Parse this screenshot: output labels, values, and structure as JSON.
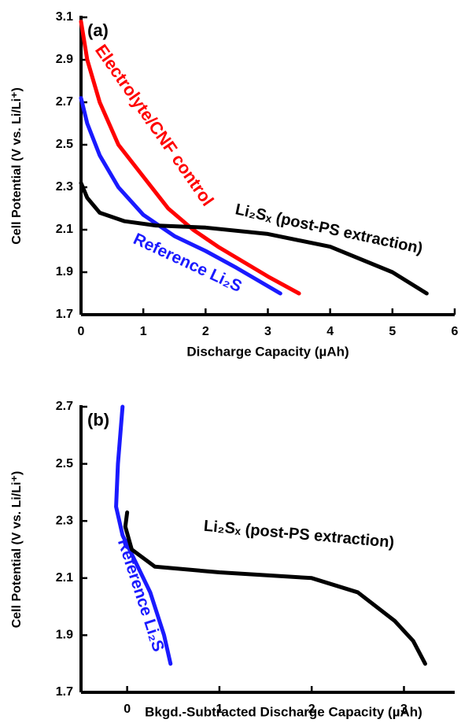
{
  "chart_data": [
    {
      "type": "line",
      "title": "(a)",
      "x_label": "Discharge Capacity (µAh)",
      "y_label": "Cell Potential (V vs. Li/Li⁺)",
      "xlim": [
        0,
        6
      ],
      "xticks": [
        0,
        1,
        2,
        3,
        4,
        5,
        6
      ],
      "ylim": [
        1.7,
        3.1
      ],
      "yticks": [
        1.7,
        1.9,
        2.1,
        2.3,
        2.5,
        2.7,
        2.9,
        3.1
      ],
      "series": [
        {
          "name": "Electrolyte/CNF control",
          "color": "#ff0000",
          "x": [
            0,
            0.1,
            0.3,
            0.6,
            1.0,
            1.4,
            1.8,
            2.2,
            2.6,
            3.0,
            3.5
          ],
          "values": [
            3.08,
            2.9,
            2.7,
            2.5,
            2.35,
            2.2,
            2.1,
            2.02,
            1.95,
            1.88,
            1.8
          ]
        },
        {
          "name": "Reference Li₂S",
          "color": "#1a1aff",
          "x": [
            0,
            0.1,
            0.3,
            0.6,
            1.0,
            1.5,
            2.0,
            2.5,
            3.2
          ],
          "values": [
            2.72,
            2.6,
            2.45,
            2.3,
            2.17,
            2.07,
            2.0,
            1.92,
            1.8
          ]
        },
        {
          "name": "Li₂Sₓ (post-PS extraction)",
          "color": "#000000",
          "x": [
            0,
            0.1,
            0.3,
            0.7,
            1.2,
            2,
            3,
            4,
            5,
            5.55
          ],
          "values": [
            2.32,
            2.25,
            2.18,
            2.14,
            2.12,
            2.11,
            2.08,
            2.02,
            1.9,
            1.8
          ]
        }
      ]
    },
    {
      "type": "line",
      "title": "(b)",
      "x_label": "Bkgd.-Subtracted Discharge Capacity (µAh)",
      "y_label": "Cell Potential (V vs. Li/Li⁺)",
      "xlim": [
        -0.5,
        3.55
      ],
      "xticks": [
        0,
        1,
        2,
        3
      ],
      "ylim": [
        1.7,
        2.7
      ],
      "yticks": [
        1.7,
        1.9,
        2.1,
        2.3,
        2.5,
        2.7
      ],
      "series": [
        {
          "name": "Reference Li₂S",
          "color": "#1a1aff",
          "x": [
            -0.05,
            -0.1,
            -0.12,
            -0.05,
            0.1,
            0.25,
            0.4,
            0.47
          ],
          "values": [
            2.7,
            2.5,
            2.35,
            2.25,
            2.15,
            2.05,
            1.9,
            1.8
          ]
        },
        {
          "name": "Li₂Sₓ (post-PS extraction)",
          "color": "#000000",
          "x": [
            0,
            -0.02,
            0.05,
            0.3,
            1,
            2,
            2.5,
            2.9,
            3.1,
            3.23
          ],
          "values": [
            2.33,
            2.28,
            2.2,
            2.14,
            2.12,
            2.1,
            2.05,
            1.95,
            1.88,
            1.8
          ]
        }
      ]
    }
  ]
}
